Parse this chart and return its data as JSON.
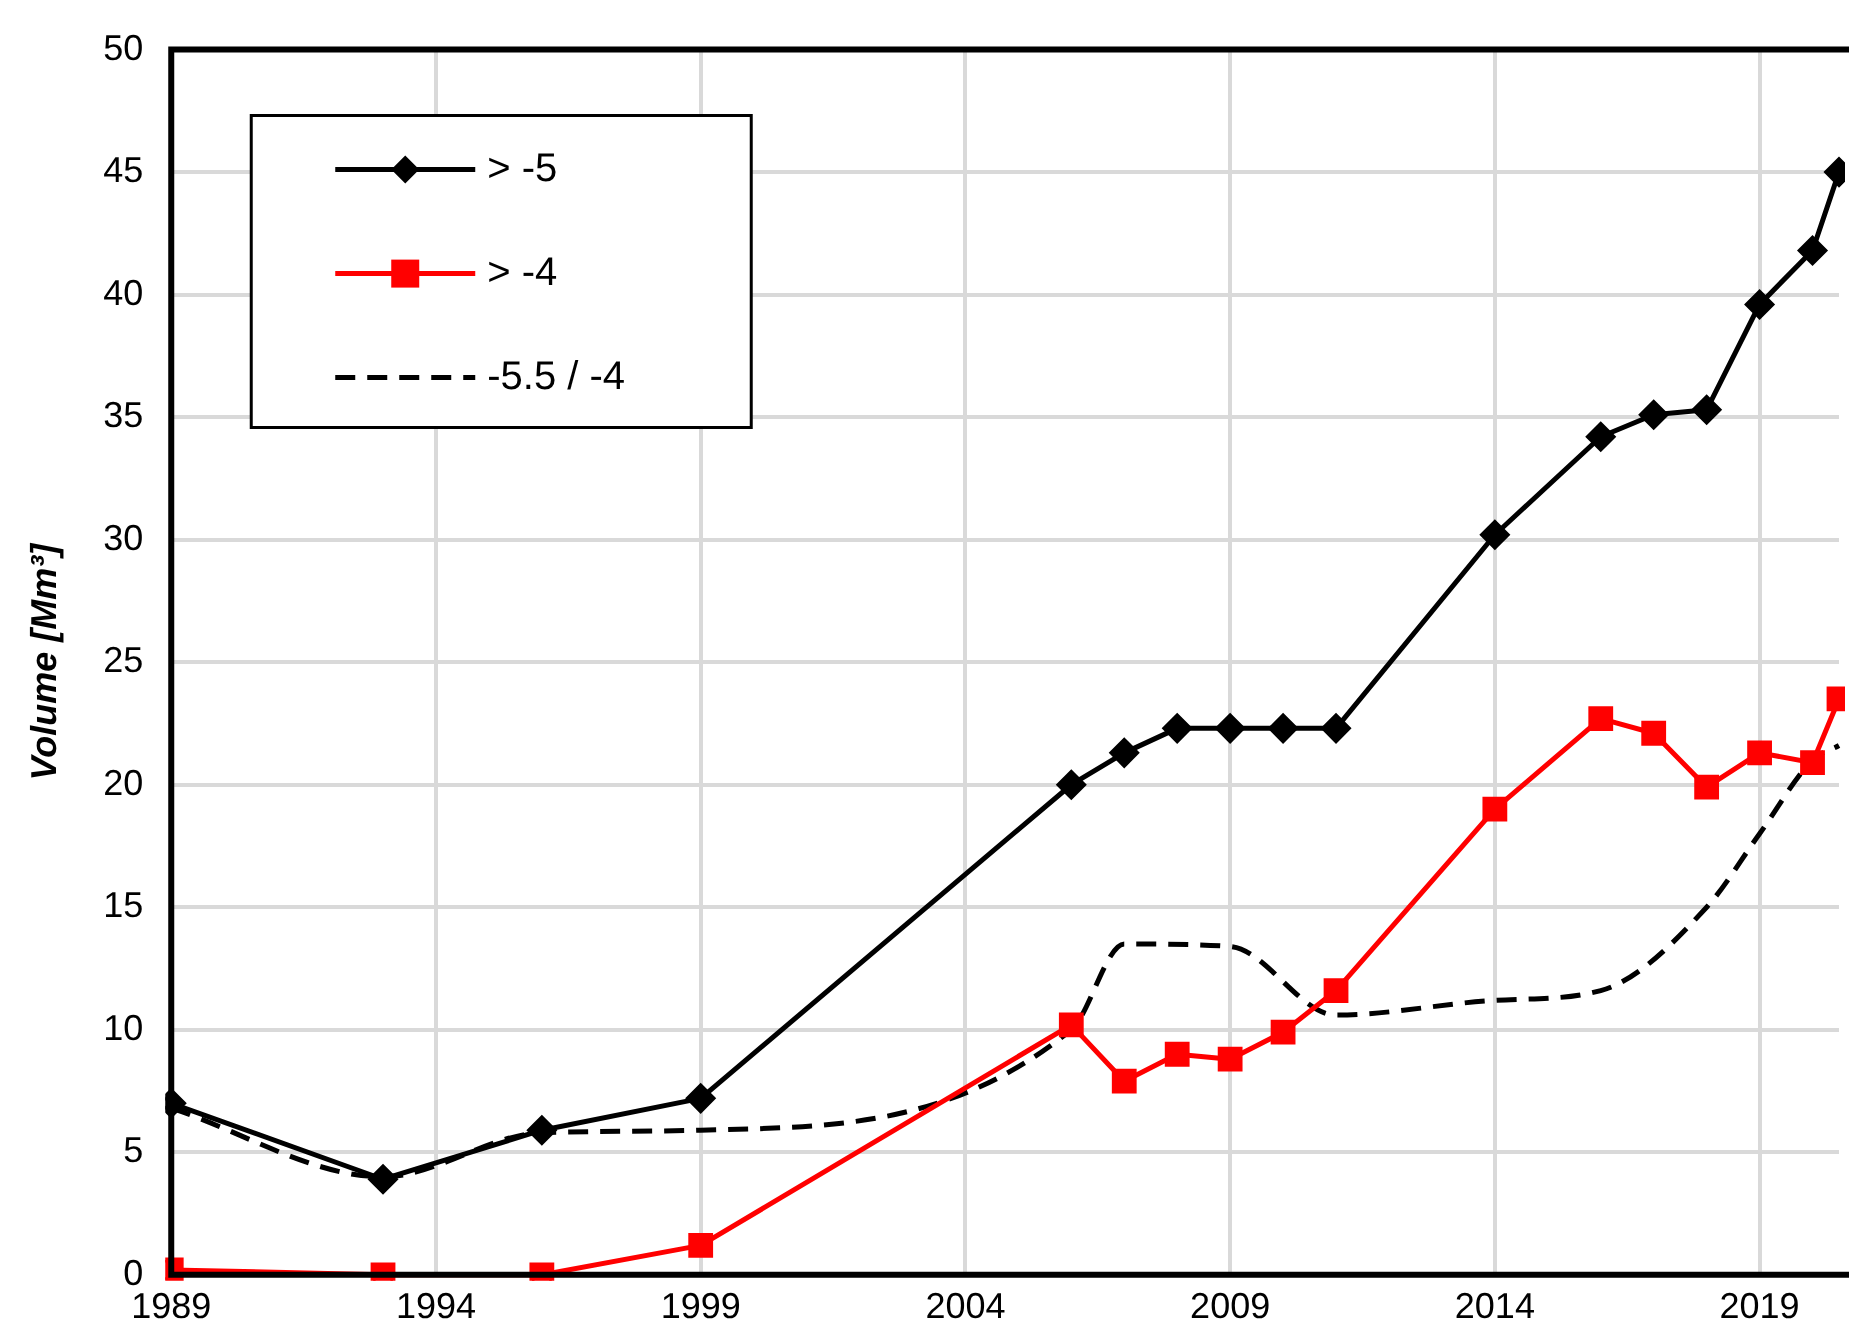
{
  "chart_data": {
    "type": "line",
    "ylabel": "Volume [Mm³]",
    "xlim": [
      1989,
      2020.5
    ],
    "xticks": [
      1989,
      1994,
      1999,
      2004,
      2009,
      2014,
      2019
    ],
    "ylim": [
      0,
      50
    ],
    "yticks": [
      0,
      5,
      10,
      15,
      20,
      25,
      30,
      35,
      40,
      45,
      50
    ],
    "grid": true,
    "legend": "top left",
    "series": [
      {
        "name": "> -5",
        "color": "#000000",
        "marker": "diamond",
        "line_style": "solid",
        "x": [
          1989,
          1993,
          1996,
          1999,
          2006,
          2007,
          2008,
          2009,
          2010,
          2011,
          2014,
          2016,
          2017,
          2018,
          2019,
          2020,
          2020.5
        ],
        "values": [
          7.0,
          3.9,
          5.9,
          7.2,
          20.0,
          21.3,
          22.3,
          22.3,
          22.3,
          22.3,
          30.2,
          34.2,
          35.1,
          35.3,
          39.6,
          41.8,
          45
        ]
      },
      {
        "name": "> -4",
        "color": "#ff0000",
        "marker": "square",
        "line_style": "solid",
        "x": [
          1989,
          1993,
          1996,
          1999,
          2006,
          2007,
          2008,
          2009,
          2010,
          2011,
          2014,
          2016,
          2017,
          2018,
          2019,
          2020,
          2020.5
        ],
        "values": [
          0.2,
          0.0,
          0.0,
          1.2,
          10.2,
          7.9,
          9.0,
          8.8,
          9.9,
          11.6,
          19.0,
          22.7,
          22.1,
          19.9,
          21.3,
          20.9,
          23.5
        ]
      },
      {
        "name": "-5.5 / -4",
        "color": "#000000",
        "marker": "none",
        "line_style": "dashed",
        "x": [
          1989,
          1993,
          1996,
          1999,
          2006,
          2007,
          2009,
          2011,
          2014,
          2016,
          2018,
          2019,
          2020,
          2020.5
        ],
        "values": [
          6.8,
          4.0,
          5.8,
          5.9,
          10.0,
          13.5,
          13.4,
          10.6,
          11.2,
          11.6,
          15.0,
          18.0,
          21.0,
          21.6
        ]
      }
    ]
  }
}
